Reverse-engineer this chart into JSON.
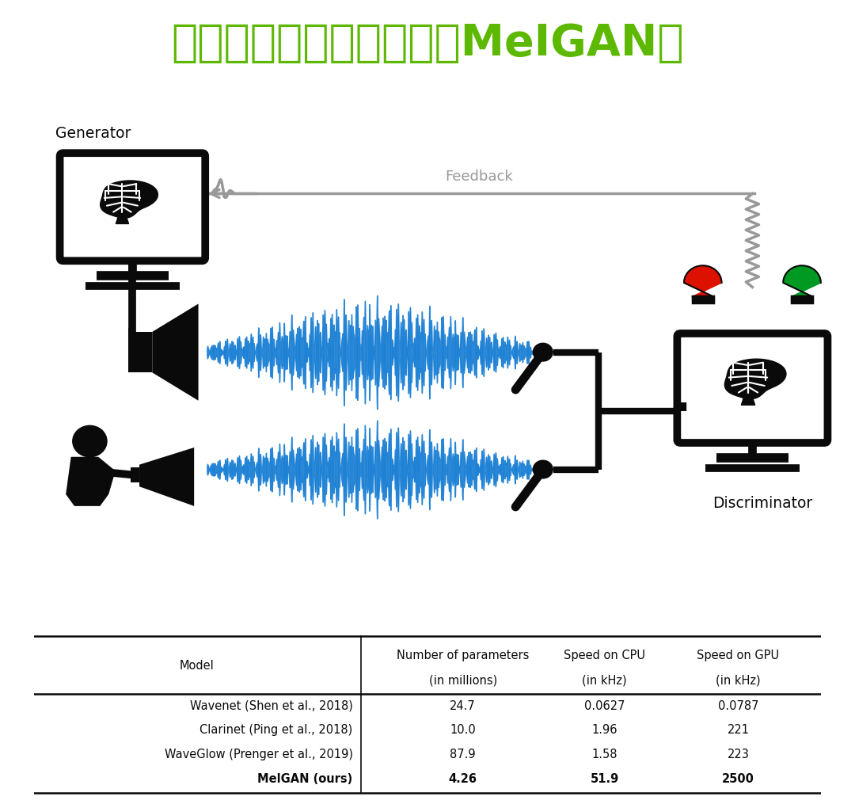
{
  "title": "语音合成深度学习模型（MeIGAN）",
  "title_color": "#5cb800",
  "title_fontsize": 40,
  "generator_label": "Generator",
  "discriminator_label": "Discriminator",
  "feedback_label": "Feedback",
  "table_headers_l1": [
    "Model",
    "Number of parameters",
    "Speed on CPU",
    "Speed on GPU"
  ],
  "table_headers_l2": [
    "",
    "(in millions)",
    "(in kHz)",
    "(in kHz)"
  ],
  "table_rows": [
    [
      "Wavenet (Shen et al., 2018)",
      "24.7",
      "0.0627",
      "0.0787"
    ],
    [
      "Clarinet (Ping et al., 2018)",
      "10.0",
      "1.96",
      "221"
    ],
    [
      "WaveGlow (Prenger et al., 2019)",
      "87.9",
      "1.58",
      "223"
    ],
    [
      "MelGAN (ours)",
      "4.26",
      "51.9",
      "2500"
    ]
  ],
  "wave_color": "#1a7fd4",
  "feedback_color": "#999999",
  "black": "#0a0a0a",
  "white": "#ffffff",
  "red_bulb": "#dd1100",
  "green_bulb": "#009922",
  "bg": "#ffffff"
}
